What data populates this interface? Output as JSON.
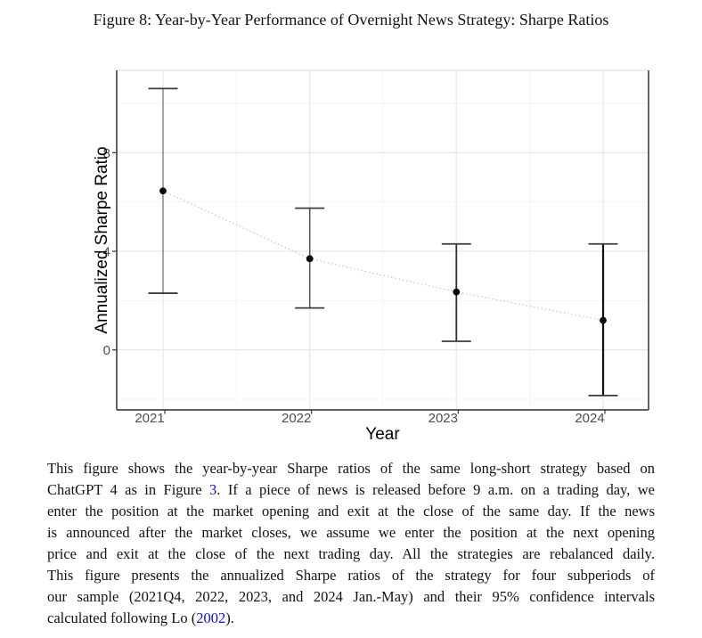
{
  "figure_title": "Figure 8:  Year-by-Year Performance of Overnight News Strategy: Sharpe Ratios",
  "chart_data": {
    "type": "scatter",
    "title": "",
    "xlabel": "Year",
    "ylabel": "Annualized Sharpe Ratio",
    "x_categories": [
      "2021",
      "2022",
      "2023",
      "2024"
    ],
    "series": [
      {
        "name": "Annualized Sharpe ratio with 95% confidence interval",
        "points": [
          {
            "x": "2021",
            "y": 6.45,
            "ci_low": 2.3,
            "ci_high": 10.6
          },
          {
            "x": "2022",
            "y": 3.7,
            "ci_low": 1.7,
            "ci_high": 5.75
          },
          {
            "x": "2023",
            "y": 2.35,
            "ci_low": 0.35,
            "ci_high": 4.3
          },
          {
            "x": "2024",
            "y": 1.2,
            "ci_low": -1.85,
            "ci_high": 4.3
          }
        ]
      }
    ],
    "yticks": [
      0,
      4,
      8
    ],
    "ylim": [
      -2.4,
      11.3
    ],
    "grid": {
      "major_y": [
        0,
        4,
        8
      ],
      "minor_y": [
        -2,
        2,
        6,
        10
      ],
      "major_x_at_categories": true,
      "minor_x_at_midpoints": true
    },
    "legend": "none",
    "style": {
      "marker": "filled-circle",
      "connector": "dotted-gray-line",
      "error_bars": "95% CI"
    }
  },
  "caption": {
    "lines": [
      [
        {
          "t": "This figure shows the year-by-year Sharpe ratios of the same long-short strategy based on"
        }
      ],
      [
        {
          "t": "ChatGPT 4 as in Figure "
        },
        {
          "t": "3"
        },
        {
          "t": ". If a piece of news is released before 9 a.m.  on a trading day, we"
        }
      ],
      [
        {
          "t": "enter the position at the market opening and exit at the close of the same day. If the news"
        }
      ],
      [
        {
          "t": "is announced after the market closes, we assume we enter the position at the next opening"
        }
      ],
      [
        {
          "t": "price and exit at the close of the next trading day. All the strategies are rebalanced daily."
        }
      ],
      [
        {
          "t": "This figure presents the annualized Sharpe ratios of the strategy for four subperiods of"
        }
      ],
      [
        {
          "t": "our sample (2021Q4, 2022, 2023, and 2024 Jan.-May) and their 95% confidence intervals"
        }
      ],
      [
        {
          "t": "calculated following Lo ("
        },
        {
          "t": "2002"
        },
        {
          "t": ")."
        }
      ]
    ]
  },
  "colors": {
    "link_blue": "#0b0bee",
    "point_black": "#0b0b0b",
    "grid_major": "#e8e8e8",
    "grid_minor": "#f3f3f3",
    "panel_border_dark": "#4a4a4a",
    "panel_border_top": "#e4e4e4",
    "axis_text_gray": "#4d4d4d",
    "trend_line_gray": "#c4c4c4"
  }
}
